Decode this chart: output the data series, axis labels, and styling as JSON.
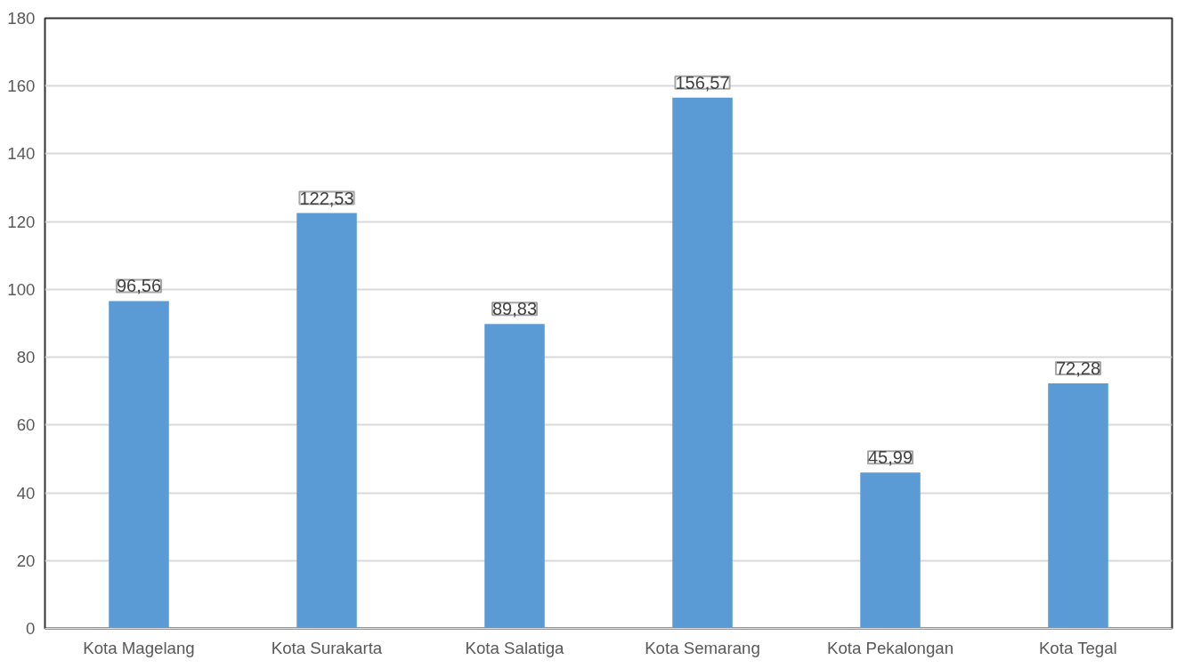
{
  "chart_data": {
    "type": "bar",
    "categories": [
      "Kota Magelang",
      "Kota Surakarta",
      "Kota Salatiga",
      "Kota Semarang",
      "Kota Pekalongan",
      "Kota Tegal"
    ],
    "values": [
      96.56,
      122.53,
      89.83,
      156.57,
      45.99,
      72.28
    ],
    "value_labels": [
      "96,56",
      "122,53",
      "89,83",
      "156,57",
      "45,99",
      "72,28"
    ],
    "color": "#5b9bd5",
    "ylim": [
      0,
      180
    ],
    "yticks": [
      0,
      20,
      40,
      60,
      80,
      100,
      120,
      140,
      160,
      180
    ],
    "grid": "y"
  }
}
